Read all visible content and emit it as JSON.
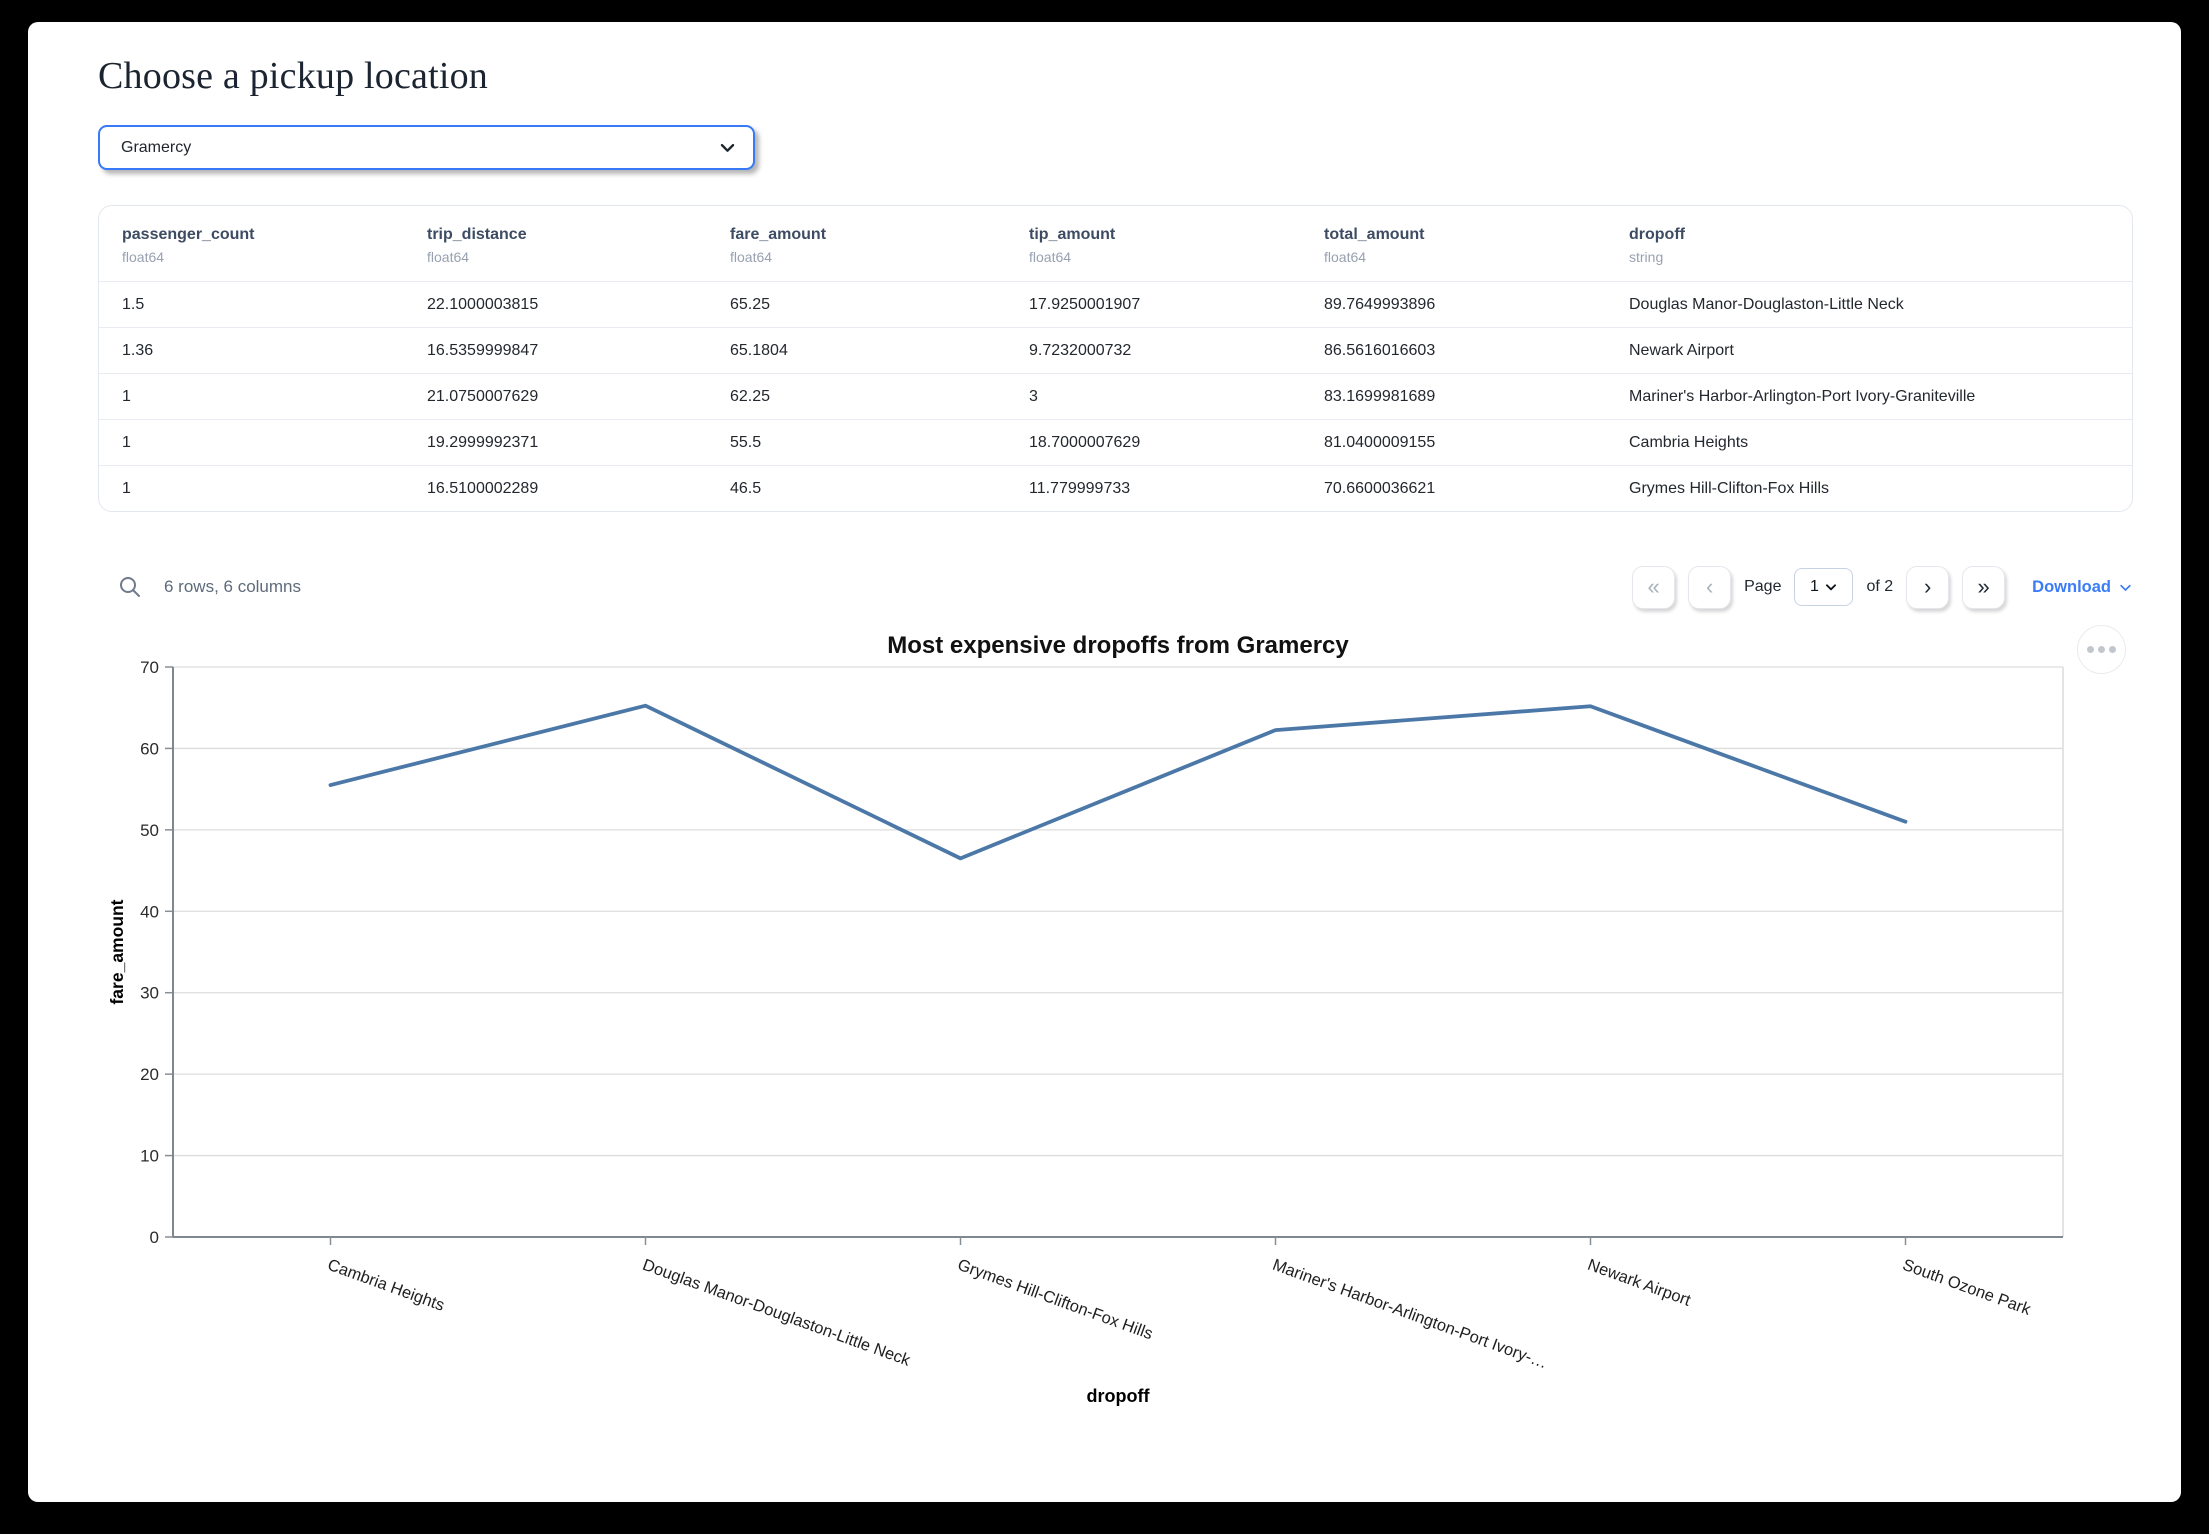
{
  "title": "Choose a pickup location",
  "pickup_select": {
    "value": "Gramercy"
  },
  "table": {
    "columns": [
      {
        "name": "passenger_count",
        "dtype": "float64"
      },
      {
        "name": "trip_distance",
        "dtype": "float64"
      },
      {
        "name": "fare_amount",
        "dtype": "float64"
      },
      {
        "name": "tip_amount",
        "dtype": "float64"
      },
      {
        "name": "total_amount",
        "dtype": "float64"
      },
      {
        "name": "dropoff",
        "dtype": "string"
      }
    ],
    "rows": [
      [
        "1.5",
        "22.1000003815",
        "65.25",
        "17.9250001907",
        "89.7649993896",
        "Douglas Manor-Douglaston-Little Neck"
      ],
      [
        "1.36",
        "16.5359999847",
        "65.1804",
        "9.7232000732",
        "86.5616016603",
        "Newark Airport"
      ],
      [
        "1",
        "21.0750007629",
        "62.25",
        "3",
        "83.1699981689",
        "Mariner's Harbor-Arlington-Port Ivory-Graniteville"
      ],
      [
        "1",
        "19.2999992371",
        "55.5",
        "18.7000007629",
        "81.0400009155",
        "Cambria Heights"
      ],
      [
        "1",
        "16.5100002289",
        "46.5",
        "11.779999733",
        "70.6600036621",
        "Grymes Hill-Clifton-Fox Hills"
      ]
    ],
    "summary": "6 rows, 6 columns",
    "pagination": {
      "first_icon": "«",
      "prev_icon": "‹",
      "page_label": "Page",
      "page_value": "1",
      "total_label": "of 2",
      "next_icon": "›",
      "last_icon": "»",
      "download_label": "Download"
    }
  },
  "chart_data": {
    "type": "line",
    "title": "Most expensive dropoffs from Gramercy",
    "xlabel": "dropoff",
    "ylabel": "fare_amount",
    "categories": [
      "Cambria Heights",
      "Douglas Manor-Douglaston-Little Neck",
      "Grymes Hill-Clifton-Fox Hills",
      "Mariner's Harbor-Arlington-Port Ivory-…",
      "Newark Airport",
      "South Ozone Park"
    ],
    "values": [
      55.5,
      65.25,
      46.5,
      62.25,
      65.1804,
      51
    ],
    "ylim": [
      0,
      70
    ],
    "yticks": [
      0,
      10,
      20,
      30,
      40,
      50,
      60,
      70
    ],
    "line_color": "#4c78a8",
    "grid": true,
    "legend": "none"
  }
}
